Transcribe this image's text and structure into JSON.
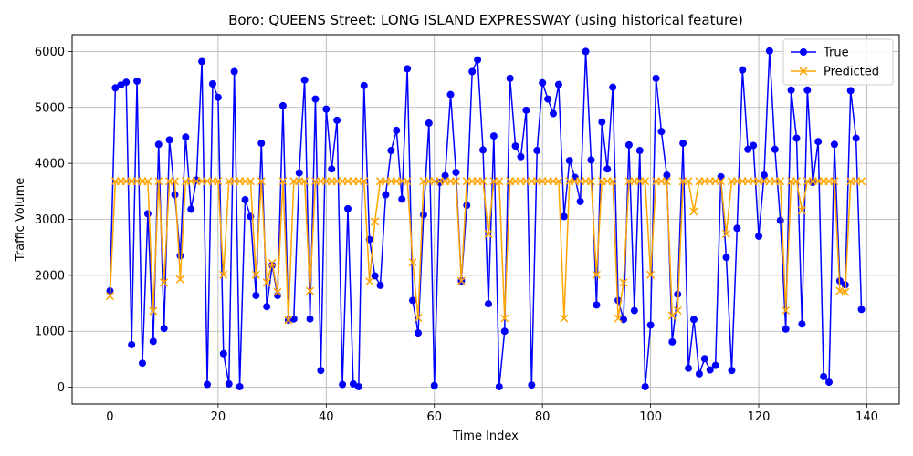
{
  "chart_data": {
    "type": "line",
    "title": "Boro: QUEENS Street: LONG ISLAND EXPRESSWAY (using historical feature)",
    "xlabel": "Time Index",
    "ylabel": "Traffic Volume",
    "xlim": [
      -7,
      146
    ],
    "ylim": [
      -300,
      6300
    ],
    "xticks": [
      0,
      20,
      40,
      60,
      80,
      100,
      120,
      140
    ],
    "yticks": [
      0,
      1000,
      2000,
      3000,
      4000,
      5000,
      6000
    ],
    "grid": true,
    "legend_position": "top-right",
    "x_start": 0,
    "series": [
      {
        "name": "True",
        "color": "#0000ff",
        "marker": "circle",
        "values": [
          1720,
          5350,
          5400,
          5450,
          760,
          5470,
          430,
          3100,
          820,
          4340,
          1050,
          4420,
          3440,
          2350,
          4470,
          3180,
          3700,
          5820,
          50,
          5420,
          5180,
          600,
          60,
          5640,
          10,
          3350,
          3050,
          1640,
          4360,
          1440,
          2180,
          1640,
          5030,
          1200,
          1220,
          3830,
          5490,
          1220,
          5150,
          300,
          4970,
          3900,
          4770,
          50,
          3190,
          60,
          10,
          5390,
          2640,
          1990,
          1820,
          3440,
          4230,
          4590,
          3360,
          5690,
          1550,
          970,
          3080,
          4720,
          30,
          3660,
          3780,
          5230,
          3840,
          1900,
          3250,
          5640,
          5850,
          4240,
          1490,
          4490,
          10,
          1000,
          5520,
          4310,
          4120,
          4950,
          40,
          4230,
          5440,
          5150,
          4890,
          5410,
          3050,
          4050,
          3750,
          3320,
          6000,
          4060,
          1470,
          4740,
          3900,
          5360,
          1550,
          1210,
          4330,
          1370,
          4230,
          10,
          1110,
          5520,
          4570,
          3790,
          810,
          1660,
          4360,
          340,
          1210,
          240,
          510,
          310,
          390,
          3760,
          2320,
          300,
          2840,
          5670,
          4250,
          4320,
          2700,
          3790,
          6010,
          4250,
          2980,
          1040,
          5310,
          4450,
          1130,
          5310,
          3660,
          4390,
          190,
          90,
          4340,
          1900,
          1830,
          5300,
          4450,
          1390
        ]
      },
      {
        "name": "Predicted",
        "color": "#ffa500",
        "marker": "x",
        "values": [
          1630,
          3680,
          3680,
          3680,
          3680,
          3680,
          3680,
          3680,
          1360,
          3680,
          1870,
          3680,
          3680,
          1930,
          3680,
          3680,
          3680,
          3680,
          3680,
          3680,
          3680,
          2010,
          3680,
          3680,
          3680,
          3680,
          3680,
          2010,
          3680,
          1870,
          2220,
          1700,
          3680,
          1200,
          3680,
          3680,
          3680,
          1720,
          3680,
          3680,
          3680,
          3680,
          3680,
          3680,
          3680,
          3680,
          3680,
          3680,
          1890,
          2960,
          3680,
          3680,
          3680,
          3680,
          3680,
          3680,
          2230,
          1240,
          3680,
          3680,
          3680,
          3680,
          3680,
          3680,
          3680,
          1900,
          3680,
          3680,
          3680,
          3680,
          2740,
          3680,
          3680,
          1230,
          3680,
          3680,
          3680,
          3680,
          3680,
          3680,
          3680,
          3680,
          3680,
          3680,
          1230,
          3680,
          3680,
          3680,
          3680,
          3680,
          2010,
          3680,
          3680,
          3680,
          1230,
          1870,
          3680,
          3680,
          3680,
          3680,
          2010,
          3680,
          3680,
          3680,
          1280,
          1370,
          3680,
          3680,
          3140,
          3680,
          3680,
          3680,
          3680,
          3680,
          2740,
          3680,
          3680,
          3680,
          3680,
          3680,
          3680,
          3680,
          3680,
          3680,
          3680,
          1370,
          3680,
          3680,
          3160,
          3680,
          3680,
          3680,
          3680,
          3680,
          3680,
          1720,
          1700,
          3680,
          3680,
          3680
        ]
      }
    ]
  }
}
